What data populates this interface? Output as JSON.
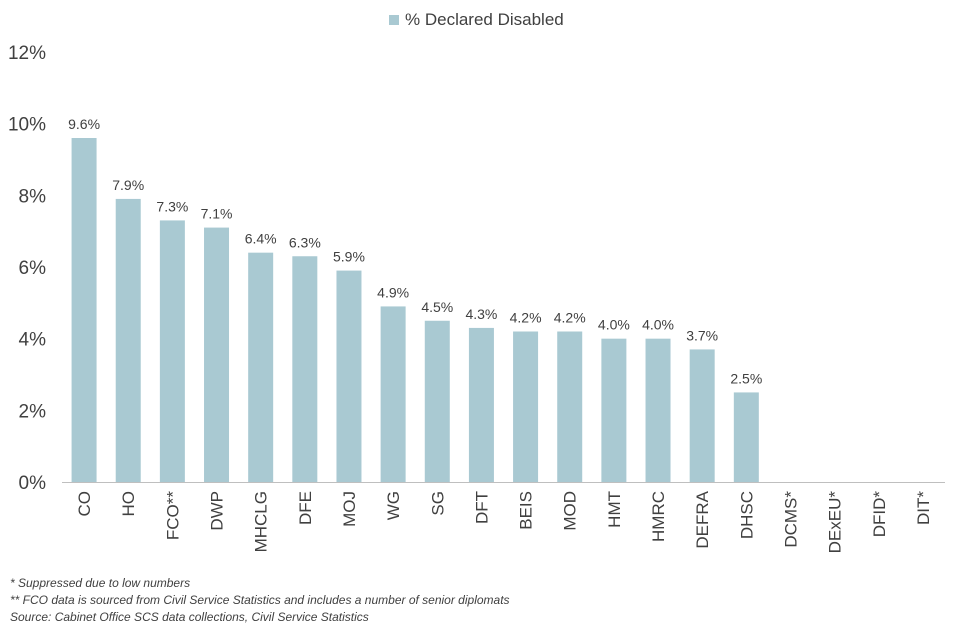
{
  "chart_data": {
    "type": "bar",
    "legend": [
      "% Declared Disabled"
    ],
    "series": [
      {
        "name": "% Declared Disabled",
        "color": "#a9c9d2",
        "values": [
          9.6,
          7.9,
          7.3,
          7.1,
          6.4,
          6.3,
          5.9,
          4.9,
          4.5,
          4.3,
          4.2,
          4.2,
          4.0,
          4.0,
          3.7,
          2.5,
          null,
          null,
          null,
          null
        ]
      }
    ],
    "categories": [
      "CO",
      "HO",
      "FCO**",
      "DWP",
      "MHCLG",
      "DFE",
      "MOJ",
      "WG",
      "SG",
      "DFT",
      "BEIS",
      "MOD",
      "HMT",
      "HMRC",
      "DEFRA",
      "DHSC",
      "DCMS*",
      "DExEU*",
      "DFID*",
      "DIT*"
    ],
    "data_labels": [
      "9.6%",
      "7.9%",
      "7.3%",
      "7.1%",
      "6.4%",
      "6.3%",
      "5.9%",
      "4.9%",
      "4.5%",
      "4.3%",
      "4.2%",
      "4.2%",
      "4.0%",
      "4.0%",
      "3.7%",
      "2.5%",
      "",
      "",
      "",
      ""
    ],
    "y_ticks": [
      "0%",
      "2%",
      "4%",
      "6%",
      "8%",
      "10%",
      "12%"
    ],
    "ylim": [
      0,
      12
    ],
    "legend_position": "top-center",
    "grid": false
  },
  "footnotes": [
    "* Suppressed due to low numbers",
    "** FCO data is sourced from Civil Service Statistics and includes a number of senior diplomats",
    "Source: Cabinet Office SCS data collections, Civil Service Statistics"
  ]
}
